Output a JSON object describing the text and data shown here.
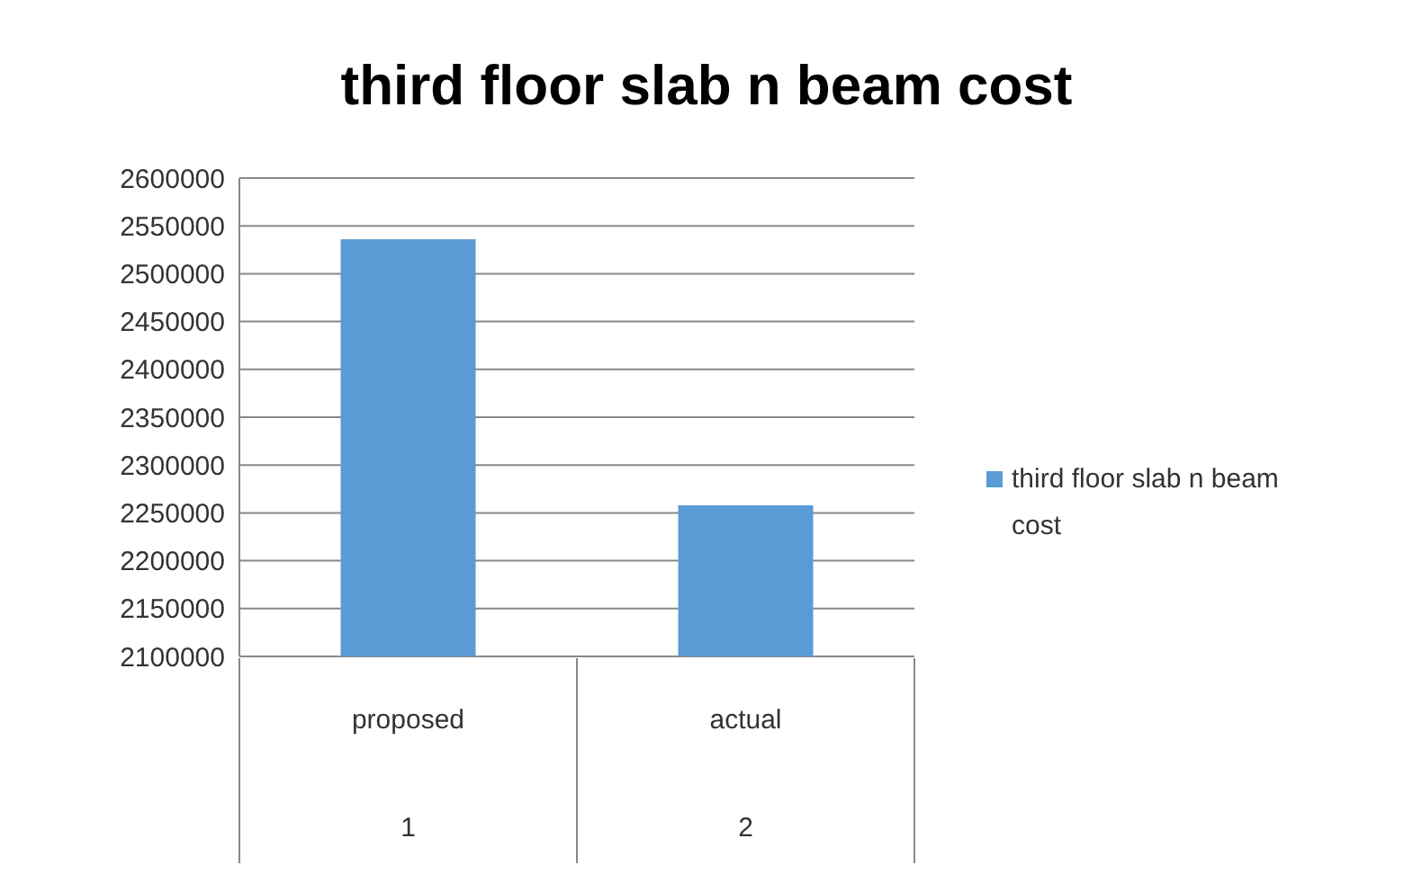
{
  "chart_data": {
    "type": "bar",
    "title": "third floor slab n beam cost",
    "categories": [
      "proposed",
      "actual"
    ],
    "series": [
      {
        "name": "third floor slab n beam cost",
        "color": "#5b9bd5",
        "values": [
          2536000,
          2258000
        ]
      }
    ],
    "ylim": [
      2100000,
      2600000
    ],
    "yticks": [
      2100000,
      2150000,
      2200000,
      2250000,
      2300000,
      2350000,
      2400000,
      2450000,
      2500000,
      2550000,
      2600000
    ],
    "grid": "y",
    "legend": "right",
    "annotations": [
      "1",
      "2"
    ]
  }
}
